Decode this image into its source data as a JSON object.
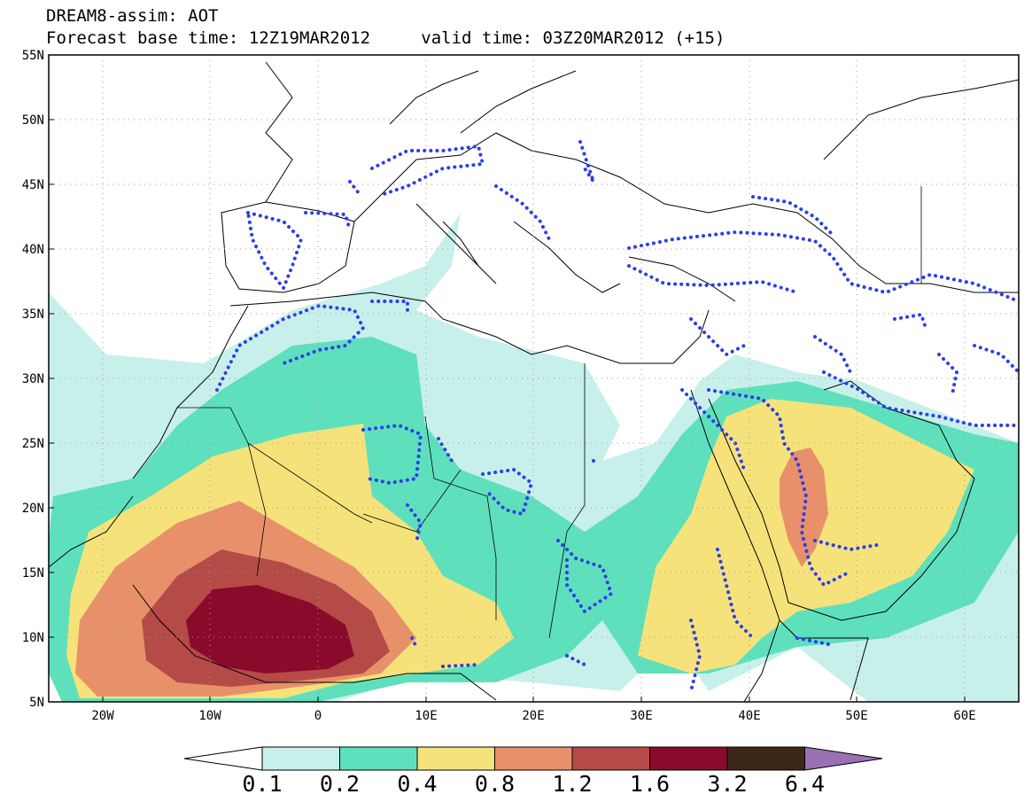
{
  "header": {
    "title": "DREAM8-assim: AOT",
    "base_time": "Forecast base time: 12Z19MAR2012",
    "valid_time": "valid time: 03Z20MAR2012 (+15)"
  },
  "map": {
    "lat_labels": [
      "55N",
      "50N",
      "45N",
      "40N",
      "35N",
      "30N",
      "25N",
      "20N",
      "15N",
      "10N",
      "5N"
    ],
    "lon_labels": [
      "20W",
      "10W",
      "0",
      "10E",
      "20E",
      "30E",
      "40E",
      "50E",
      "60E"
    ],
    "lat_values": [
      55,
      50,
      45,
      40,
      35,
      30,
      25,
      20,
      15,
      10,
      5
    ],
    "lon_values": [
      -20,
      -10,
      0,
      10,
      20,
      30,
      40,
      50,
      60
    ],
    "lon_range": [
      -25,
      65
    ],
    "lat_range": [
      5,
      55
    ],
    "grid": "dotted"
  },
  "legend": {
    "bins": [
      {
        "color": "#c8f0ea"
      },
      {
        "color": "#5ee0bc"
      },
      {
        "color": "#f6e27a"
      },
      {
        "color": "#e8906a"
      },
      {
        "color": "#b44b46"
      },
      {
        "color": "#8a0a2c"
      },
      {
        "color": "#3d2718"
      }
    ],
    "under_color": "#ffffff",
    "over_color": "#9a72b4",
    "labels": [
      "0.1",
      "0.2",
      "0.4",
      "0.8",
      "1.2",
      "1.6",
      "3.2",
      "6.4"
    ]
  }
}
